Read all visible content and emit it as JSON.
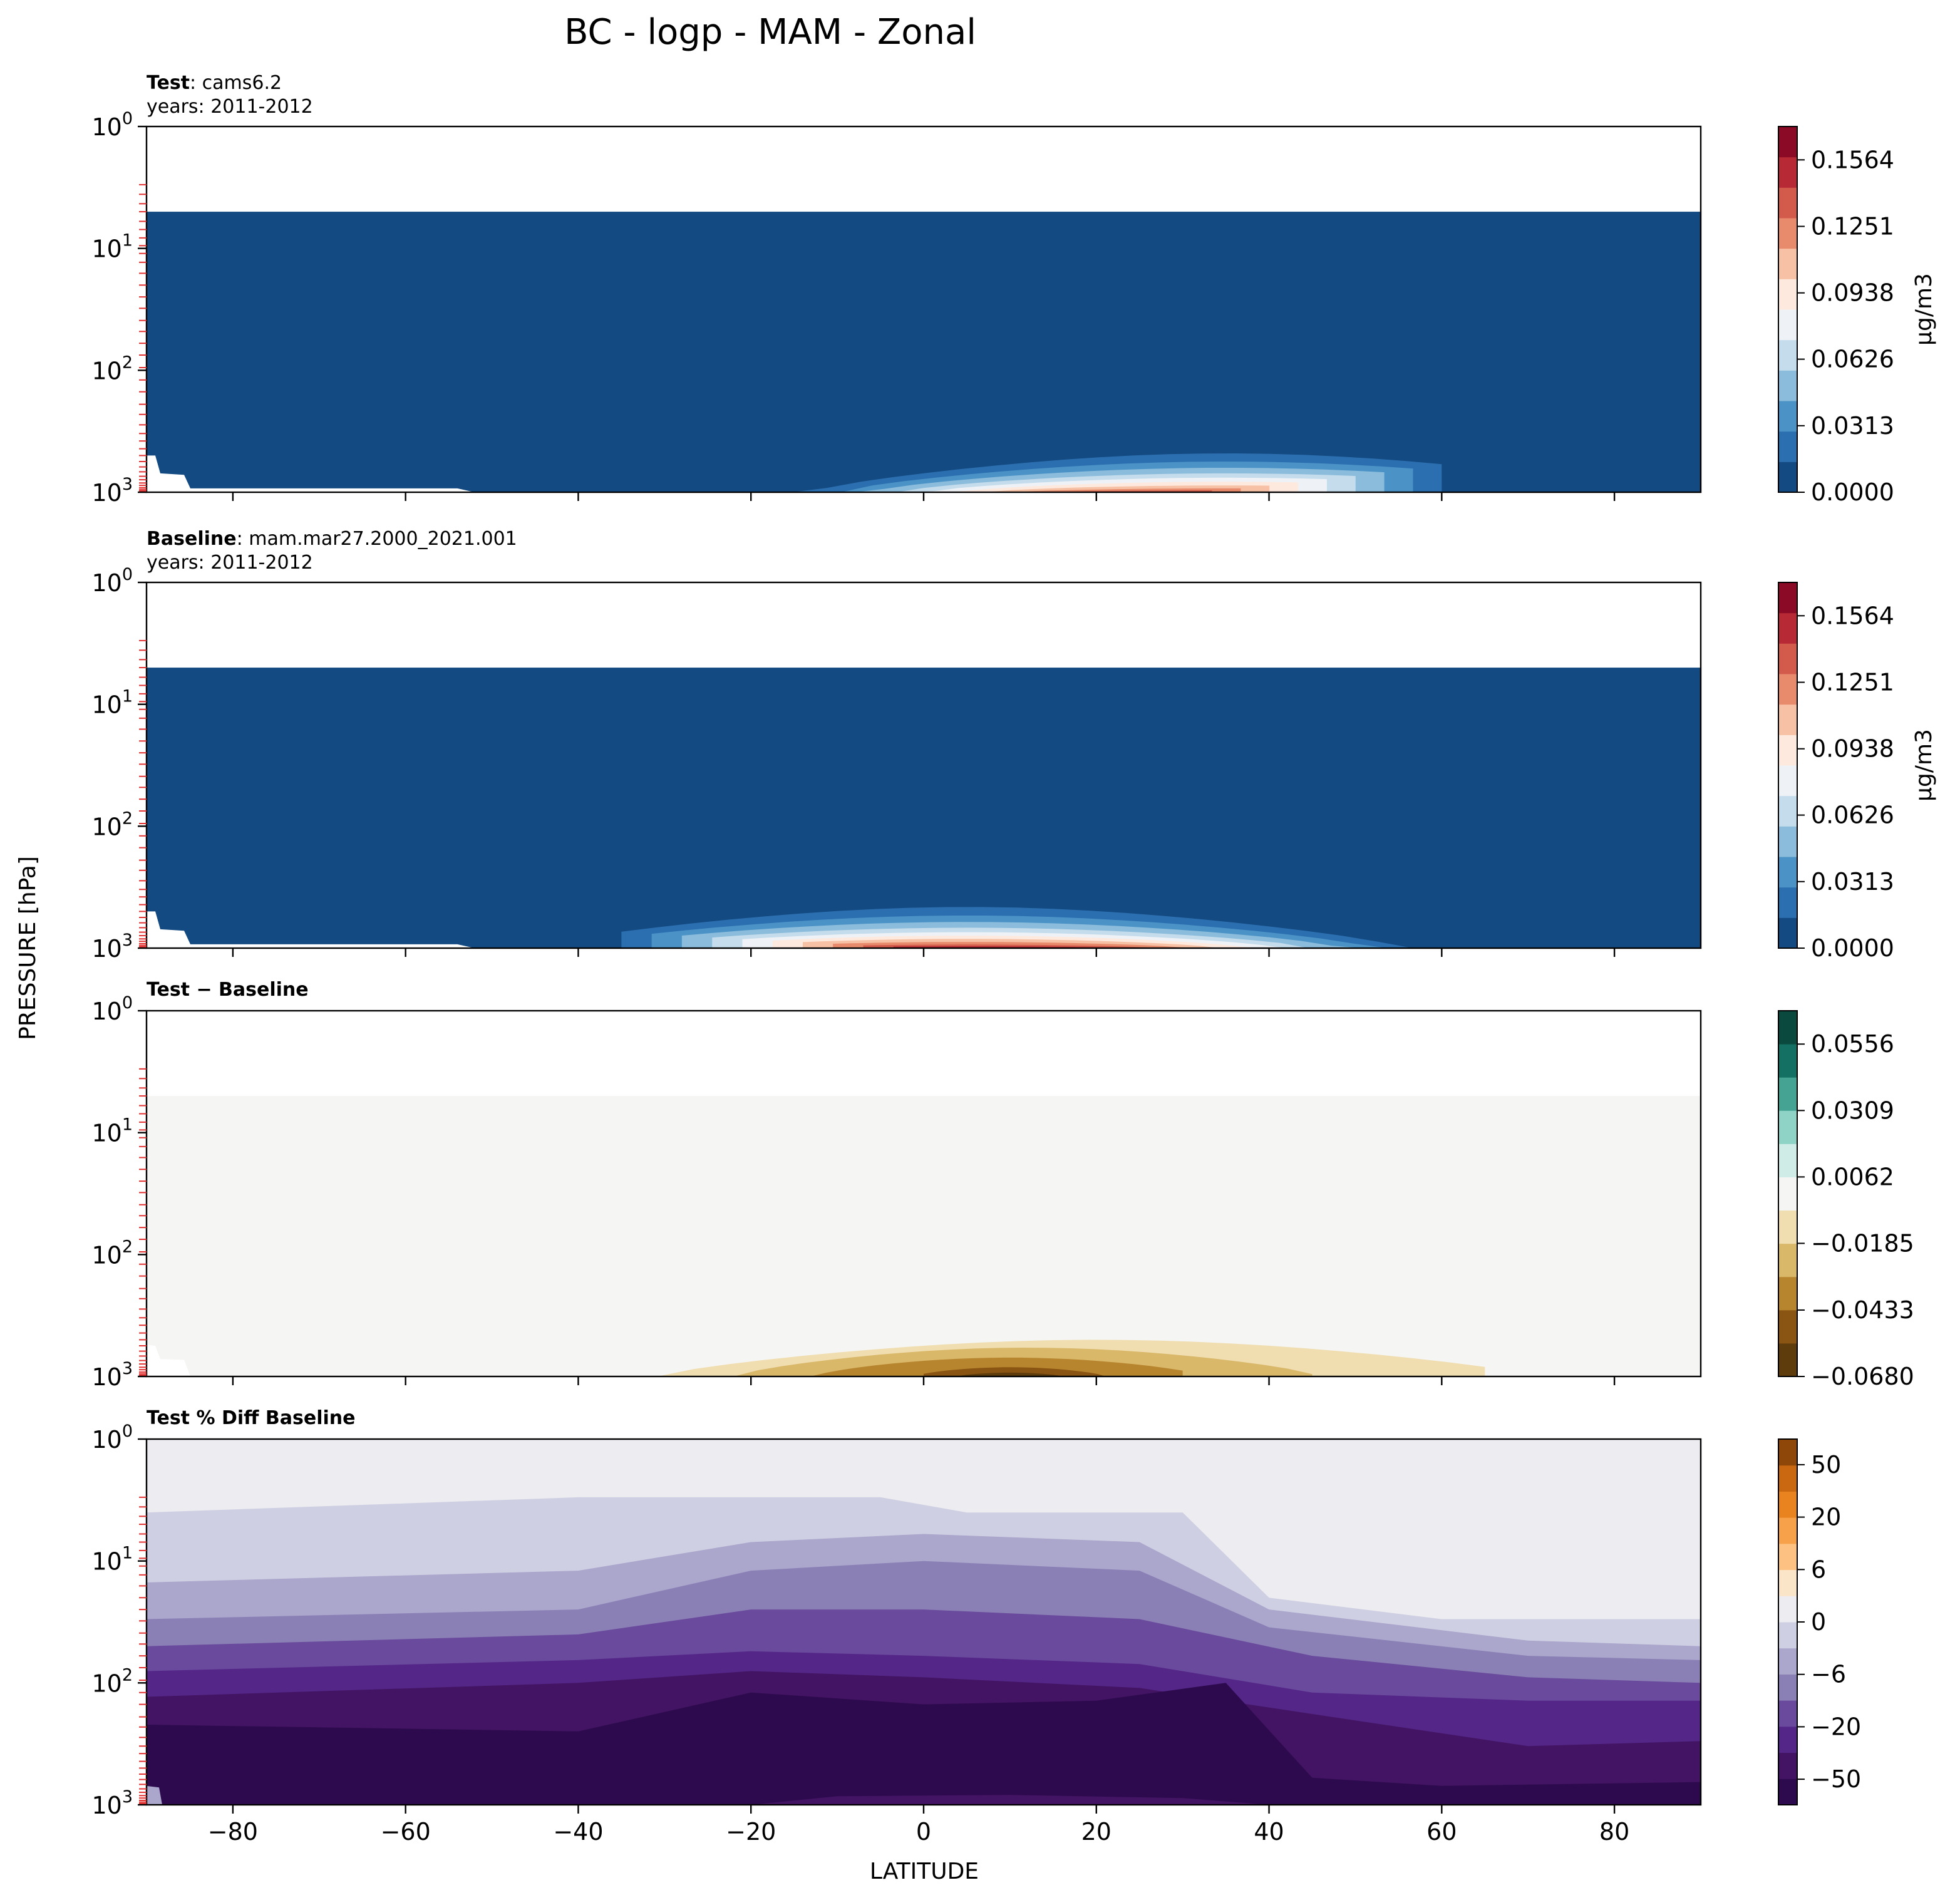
{
  "figure": {
    "title": "BC - logp - MAM - Zonal",
    "ylabel": "PRESSURE [hPa]",
    "xlabel": "LATITUDE"
  },
  "axes": {
    "x_ticks": [
      "−80",
      "−60",
      "−40",
      "−20",
      "0",
      "20",
      "40",
      "60",
      "80"
    ],
    "x_tick_values": [
      -80,
      -60,
      -40,
      -20,
      0,
      20,
      40,
      60,
      80
    ],
    "xlim": [
      -90,
      90
    ],
    "y_ticks": [
      {
        "base": "10",
        "exp": "0"
      },
      {
        "base": "10",
        "exp": "1"
      },
      {
        "base": "10",
        "exp": "2"
      },
      {
        "base": "10",
        "exp": "3"
      }
    ],
    "y_tick_values": [
      1,
      10,
      100,
      1000
    ],
    "ylim": [
      1000,
      1
    ],
    "y_scale": "log",
    "model_level_marks_color": "#e03030"
  },
  "panels": [
    {
      "name": "test",
      "title_bold": "Test",
      "title_rest": ": cams6.2",
      "subtitle": "years: 2011-2012",
      "colorbar": {
        "ticks": [
          "0.1564",
          "0.1251",
          "0.0938",
          "0.0626",
          "0.0313",
          "0.0000"
        ],
        "tick_values": [
          0.1564,
          0.1251,
          0.0938,
          0.0626,
          0.0313,
          0.0
        ],
        "label": "μg/m3",
        "levels": 12,
        "colors": [
          "#134a82",
          "#2c6fb0",
          "#4b93c6",
          "#8bbcdb",
          "#c4dcec",
          "#eef2f6",
          "#fde9de",
          "#f6c1a5",
          "#e88a6c",
          "#d35b4b",
          "#b72a35",
          "#8b0a26"
        ]
      }
    },
    {
      "name": "baseline",
      "title_bold": "Baseline",
      "title_rest": ": mam.mar27.2000_2021.001",
      "subtitle": "years: 2011-2012",
      "colorbar": {
        "ticks": [
          "0.1564",
          "0.1251",
          "0.0938",
          "0.0626",
          "0.0313",
          "0.0000"
        ],
        "tick_values": [
          0.1564,
          0.1251,
          0.0938,
          0.0626,
          0.0313,
          0.0
        ],
        "label": "μg/m3",
        "levels": 12,
        "colors": [
          "#134a82",
          "#2c6fb0",
          "#4b93c6",
          "#8bbcdb",
          "#c4dcec",
          "#eef2f6",
          "#fde9de",
          "#f6c1a5",
          "#e88a6c",
          "#d35b4b",
          "#b72a35",
          "#8b0a26"
        ]
      }
    },
    {
      "name": "difference",
      "title_bold": "Test − Baseline",
      "title_rest": "",
      "subtitle": "",
      "colorbar": {
        "ticks": [
          "0.0556",
          "0.0309",
          "0.0062",
          "−0.0185",
          "−0.0433",
          "−0.0680"
        ],
        "tick_values": [
          0.0556,
          0.0309,
          0.0062,
          -0.0185,
          -0.0433,
          -0.068
        ],
        "label": "",
        "levels": 11,
        "colors": [
          "#5e3c0b",
          "#8a5412",
          "#b8852f",
          "#d9b86a",
          "#f0deb1",
          "#f5f5f3",
          "#cfece7",
          "#8fd3c7",
          "#44a393",
          "#137062",
          "#0a4a3e"
        ]
      }
    },
    {
      "name": "percent-difference",
      "title_bold": "Test % Diff Baseline",
      "title_rest": "",
      "subtitle": "",
      "colorbar": {
        "ticks": [
          "50",
          "20",
          "6",
          "0",
          "−6",
          "−20",
          "−50"
        ],
        "tick_values": [
          50,
          20,
          6,
          0,
          -6,
          -20,
          -50
        ],
        "label": "",
        "levels": 14,
        "colors": [
          "#2d0a4d",
          "#431463",
          "#542688",
          "#6a4a9c",
          "#8a80b5",
          "#aaa6cc",
          "#cfcfe3",
          "#ececf1",
          "#fbe5c8",
          "#fdc281",
          "#f7a14a",
          "#e8831f",
          "#c96810",
          "#8f4709"
        ]
      }
    }
  ],
  "chart_data": [
    {
      "type": "heatmap",
      "panel": "Test: cams6.2",
      "x": "latitude (-90 to 90)",
      "y": "pressure hPa (1000 to 1, log)",
      "data_top_hPa": 5,
      "background_value": 0.0,
      "plume": {
        "lat_range": [
          -35,
          60
        ],
        "max_value_approx": 0.14,
        "max_location": {
          "lat": 30,
          "pressure_hPa": 980
        },
        "top_hPa_approx": 500
      }
    },
    {
      "type": "heatmap",
      "panel": "Baseline: mam.mar27.2000_2021.001",
      "x": "latitude (-90 to 90)",
      "y": "pressure hPa (1000 to 1, log)",
      "data_top_hPa": 5,
      "background_value": 0.0,
      "plume": {
        "lat_range": [
          -35,
          65
        ],
        "max_value_approx": 0.16,
        "max_location": {
          "lat": 10,
          "pressure_hPa": 950
        },
        "top_hPa_approx": 480
      }
    },
    {
      "type": "heatmap",
      "panel": "Test − Baseline",
      "x": "latitude (-90 to 90)",
      "y": "pressure hPa (1000 to 1, log)",
      "data_top_hPa": 5,
      "background_value": 0.0,
      "anomaly": {
        "lat_range": [
          -35,
          65
        ],
        "min_value_approx": -0.065,
        "min_location": {
          "lat": 10,
          "pressure_hPa": 950
        },
        "top_hPa_approx": 500
      }
    },
    {
      "type": "heatmap",
      "panel": "Test % Diff Baseline",
      "x": "latitude (-90 to 90)",
      "y": "pressure hPa (1000 to 1, log)",
      "bands": [
        {
          "value": -60,
          "north_lat_edge": [
            -90,
            40
          ],
          "top_hPa": 120
        },
        {
          "value": -40,
          "top_hPa": 70
        },
        {
          "value": -25,
          "top_hPa": 50
        },
        {
          "value": -15,
          "top_hPa": 30
        },
        {
          "value": -8,
          "top_hPa": 15
        },
        {
          "value": -3,
          "top_hPa": 4
        },
        {
          "value": 0,
          "top_hPa": 1
        }
      ]
    }
  ]
}
